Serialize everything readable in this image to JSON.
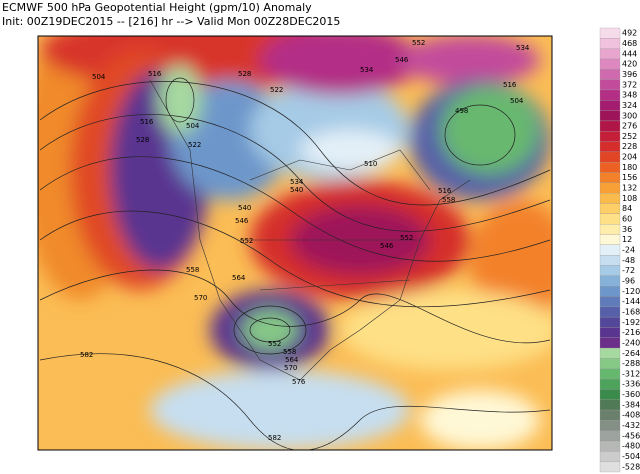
{
  "header": {
    "line1": "ECMWF 500 hPa Geopotential Height (gpm/10) Anomaly",
    "line2": "Init: 00Z19DEC2015 -- [216] hr --> Valid Mon 00Z28DEC2015"
  },
  "map": {
    "contour_labels": [
      "504",
      "516",
      "528",
      "522",
      "504",
      "516",
      "522",
      "528",
      "534",
      "546",
      "552",
      "534",
      "504",
      "510",
      "516",
      "498",
      "516",
      "540",
      "546",
      "552",
      "558",
      "564",
      "570",
      "582",
      "552",
      "558",
      "564",
      "570",
      "576",
      "582",
      "534",
      "540",
      "546",
      "552",
      "558"
    ]
  },
  "colorbar": {
    "labels": [
      492,
      468,
      444,
      420,
      396,
      372,
      348,
      324,
      300,
      276,
      252,
      228,
      204,
      180,
      156,
      132,
      108,
      84,
      60,
      36,
      12,
      -24,
      -48,
      -72,
      -96,
      -120,
      -144,
      -168,
      -192,
      -216,
      -240,
      -264,
      -288,
      -312,
      -336,
      -360,
      -384,
      -408,
      -432,
      -456,
      -480,
      -504,
      -528
    ],
    "colors": [
      "#f6dcea",
      "#f0c2dd",
      "#e8a6cf",
      "#de88c0",
      "#d06aae",
      "#c24c9b",
      "#b32f86",
      "#a31c6f",
      "#9e145a",
      "#b01547",
      "#c41e38",
      "#d52d2b",
      "#e24426",
      "#ec6123",
      "#f38129",
      "#f8a036",
      "#fbba4c",
      "#fdcf66",
      "#fee086",
      "#ffeeab",
      "#fff8d6",
      "#e4f0f8",
      "#c6def0",
      "#a6cbe6",
      "#86b2da",
      "#6d97cb",
      "#5f7bba",
      "#5660a8",
      "#53479a",
      "#5a3590",
      "#6b2f8a",
      "#a6d9a0",
      "#86c987",
      "#67b86f",
      "#4da35b",
      "#3a8a4b",
      "#4f7a55",
      "#6a7f6c",
      "#848f85",
      "#9da39e",
      "#b5b8b5",
      "#cbcccb",
      "#dfdfdf"
    ]
  }
}
